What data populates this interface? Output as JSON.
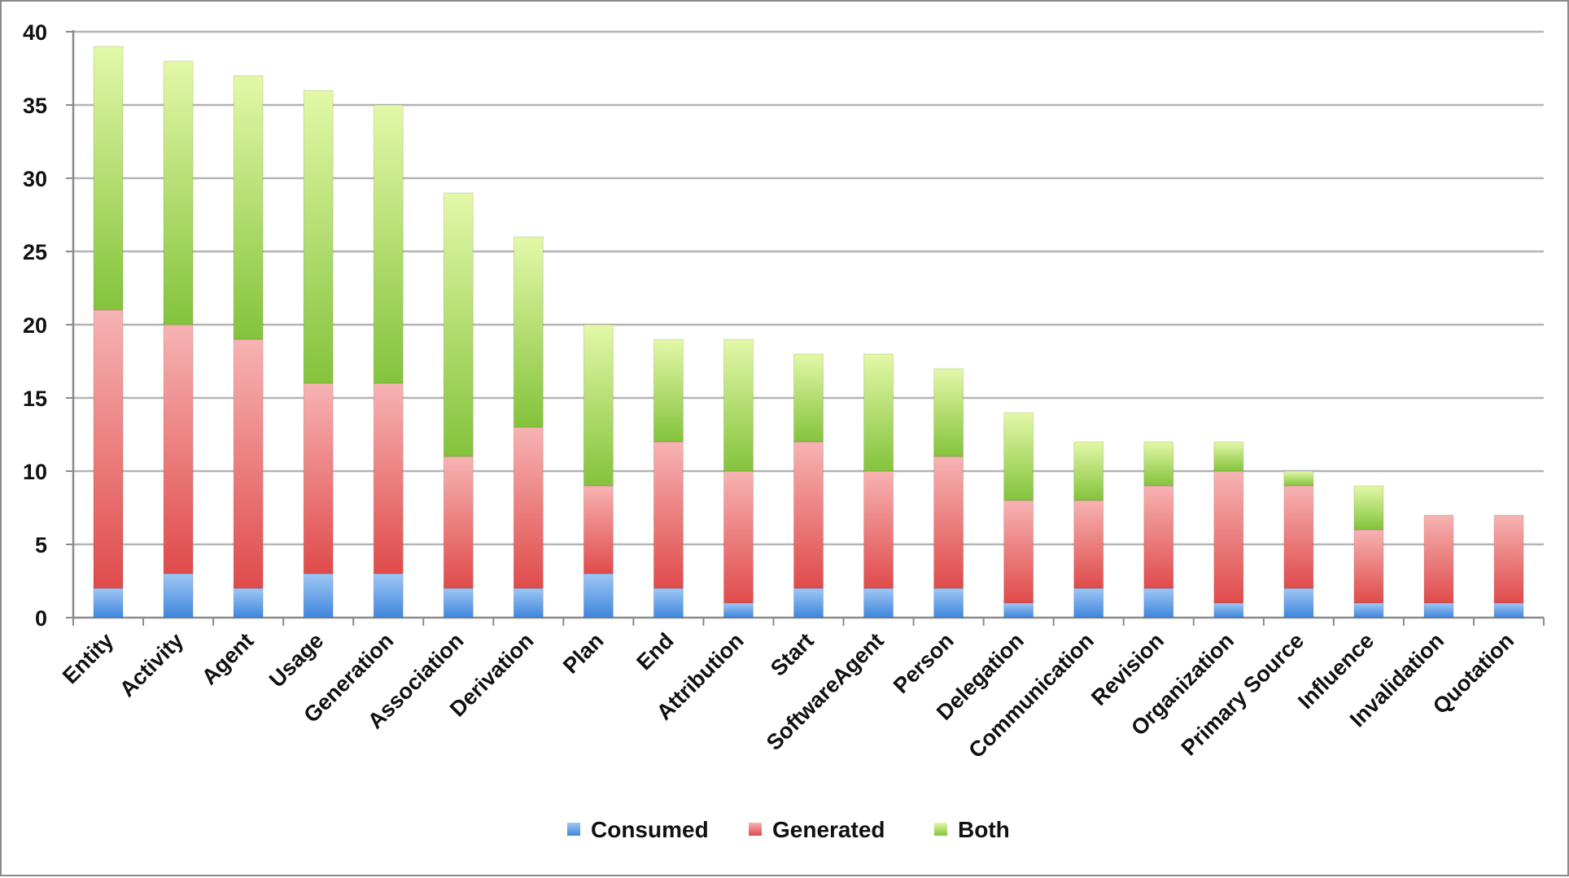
{
  "chart_data": {
    "type": "bar",
    "stacked": true,
    "categories": [
      "Entity",
      "Activity",
      "Agent",
      "Usage",
      "Generation",
      "Association",
      "Derivation",
      "Plan",
      "End",
      "Attribution",
      "Start",
      "SoftwareAgent",
      "Person",
      "Delegation",
      "Communication",
      "Revision",
      "Organization",
      "Primary Source",
      "Influence",
      "Invalidation",
      "Quotation"
    ],
    "series": [
      {
        "name": "Consumed",
        "color": "#4a8fe0",
        "values": [
          2,
          3,
          2,
          3,
          3,
          2,
          2,
          3,
          2,
          1,
          2,
          2,
          2,
          1,
          2,
          2,
          1,
          2,
          1,
          1,
          1
        ]
      },
      {
        "name": "Generated",
        "color": "#e85a5a",
        "values": [
          19,
          17,
          17,
          13,
          13,
          9,
          11,
          6,
          10,
          9,
          10,
          8,
          9,
          7,
          6,
          7,
          9,
          7,
          5,
          6,
          6
        ]
      },
      {
        "name": "Both",
        "color": "#8cc63f",
        "values": [
          18,
          18,
          18,
          20,
          19,
          18,
          13,
          11,
          7,
          9,
          6,
          8,
          6,
          6,
          4,
          3,
          2,
          1,
          3,
          0,
          0
        ]
      }
    ],
    "ylim": [
      0,
      40
    ],
    "yticks": [
      "0",
      "5",
      "10",
      "15",
      "20",
      "25",
      "30",
      "35",
      "40"
    ],
    "grid": true,
    "legend_position": "bottom",
    "title": "",
    "xlabel": "",
    "ylabel": ""
  }
}
